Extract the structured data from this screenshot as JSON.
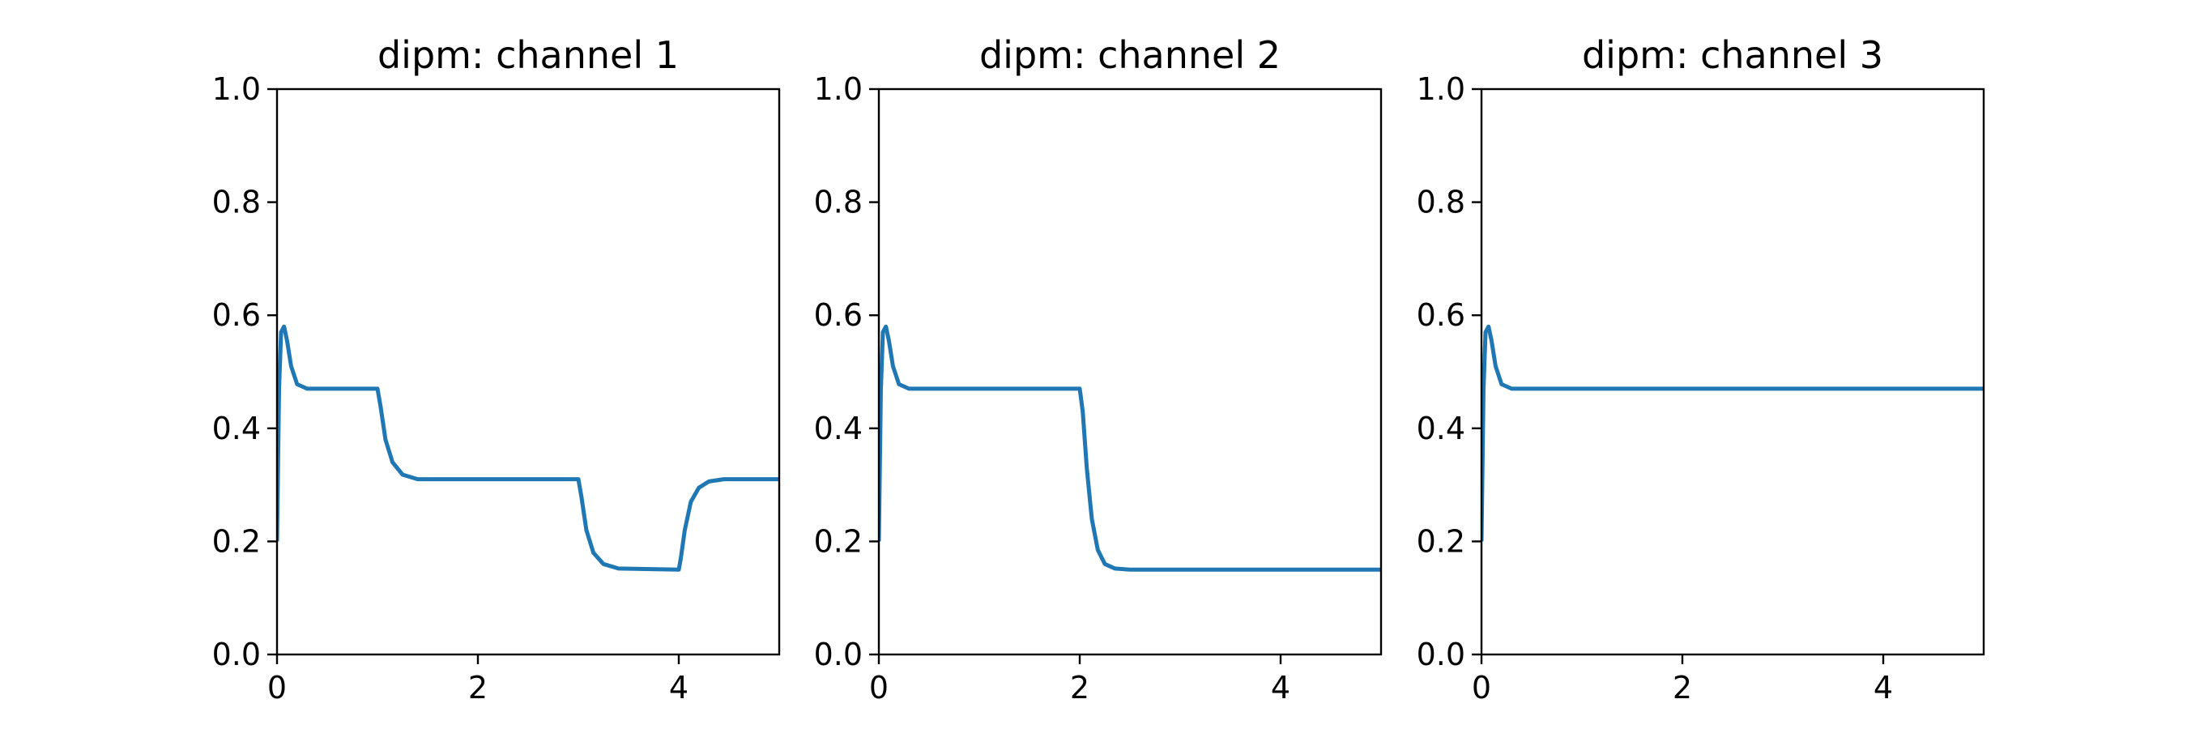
{
  "chart_data": [
    {
      "type": "line",
      "title": "dipm: channel 1",
      "xlabel": "",
      "ylabel": "",
      "xlim": [
        0,
        5
      ],
      "ylim": [
        0,
        1.0
      ],
      "xticks": [
        "0",
        "2",
        "4"
      ],
      "yticks": [
        "0.0",
        "0.2",
        "0.4",
        "0.6",
        "0.8",
        "1.0"
      ],
      "grid": false,
      "series": [
        {
          "color": "#1f77b4",
          "x": [
            0,
            0.02,
            0.04,
            0.07,
            0.1,
            0.14,
            0.2,
            0.3,
            1.0,
            1.03,
            1.08,
            1.15,
            1.25,
            1.4,
            3.0,
            3.03,
            3.08,
            3.15,
            3.25,
            3.4,
            4.0,
            4.02,
            4.06,
            4.12,
            4.2,
            4.3,
            4.45,
            5.0
          ],
          "y": [
            0.2,
            0.47,
            0.57,
            0.58,
            0.555,
            0.51,
            0.478,
            0.47,
            0.47,
            0.44,
            0.38,
            0.34,
            0.318,
            0.31,
            0.31,
            0.28,
            0.22,
            0.18,
            0.16,
            0.152,
            0.15,
            0.17,
            0.22,
            0.27,
            0.295,
            0.306,
            0.31,
            0.31
          ]
        }
      ]
    },
    {
      "type": "line",
      "title": "dipm: channel 2",
      "xlabel": "",
      "ylabel": "",
      "xlim": [
        0,
        5
      ],
      "ylim": [
        0,
        1.0
      ],
      "xticks": [
        "0",
        "2",
        "4"
      ],
      "yticks": [
        "0.0",
        "0.2",
        "0.4",
        "0.6",
        "0.8",
        "1.0"
      ],
      "grid": false,
      "series": [
        {
          "color": "#1f77b4",
          "x": [
            0,
            0.02,
            0.04,
            0.07,
            0.1,
            0.14,
            0.2,
            0.3,
            2.0,
            2.03,
            2.07,
            2.12,
            2.18,
            2.25,
            2.35,
            2.5,
            5.0
          ],
          "y": [
            0.2,
            0.47,
            0.57,
            0.58,
            0.555,
            0.51,
            0.478,
            0.47,
            0.47,
            0.43,
            0.33,
            0.24,
            0.185,
            0.16,
            0.152,
            0.15,
            0.15
          ]
        }
      ]
    },
    {
      "type": "line",
      "title": "dipm: channel 3",
      "xlabel": "",
      "ylabel": "",
      "xlim": [
        0,
        5
      ],
      "ylim": [
        0,
        1.0
      ],
      "xticks": [
        "0",
        "2",
        "4"
      ],
      "yticks": [
        "0.0",
        "0.2",
        "0.4",
        "0.6",
        "0.8",
        "1.0"
      ],
      "grid": false,
      "series": [
        {
          "color": "#1f77b4",
          "x": [
            0,
            0.02,
            0.04,
            0.07,
            0.1,
            0.14,
            0.2,
            0.3,
            5.0
          ],
          "y": [
            0.2,
            0.47,
            0.57,
            0.58,
            0.555,
            0.51,
            0.478,
            0.47,
            0.47
          ]
        }
      ]
    }
  ]
}
